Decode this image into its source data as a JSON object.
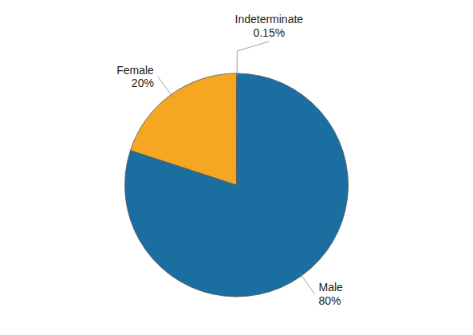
{
  "chart_data": {
    "type": "pie",
    "categories": [
      "Indeterminate",
      "Male",
      "Female"
    ],
    "values": [
      0.15,
      80,
      20
    ],
    "value_labels": [
      "0.15%",
      "80%",
      "20%"
    ],
    "colors": [
      "#1a6fa0",
      "#1a6fa0",
      "#f5a623"
    ]
  }
}
